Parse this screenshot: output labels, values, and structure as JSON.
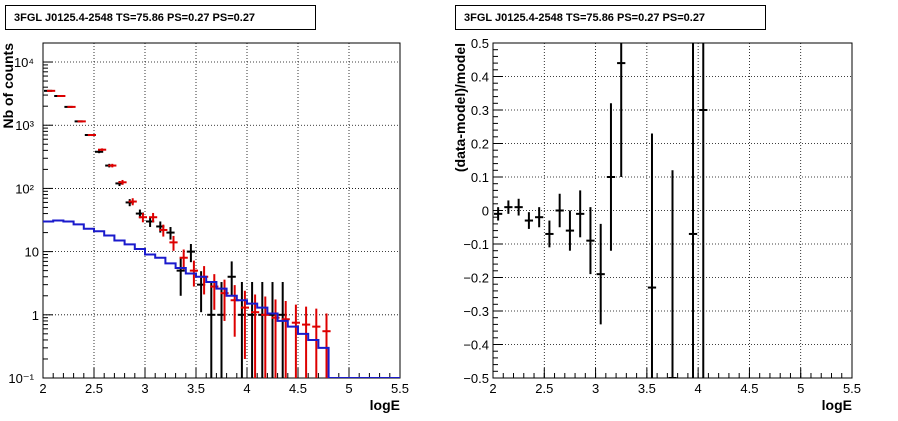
{
  "colors": {
    "data": "#000000",
    "model": "#dd0000",
    "background": "#1a1acc",
    "frame": "#000000"
  },
  "chart_data": [
    {
      "type": "scatter",
      "title": "3FGL J0125.4-2548 TS=75.86 PS=0.27 PS=0.27",
      "xlabel": "logE",
      "ylabel": "Nb of counts",
      "xlim": [
        2,
        5.5
      ],
      "ylim": [
        0.1,
        20000
      ],
      "yscale": "log",
      "grid": true,
      "xticks": [
        "2",
        "2.5",
        "3",
        "3.5",
        "4",
        "4.5",
        "5",
        "5.5"
      ],
      "yticks": [
        "10⁻¹",
        "1",
        "10",
        "10²",
        "10³",
        "10⁴"
      ],
      "series": [
        {
          "role": "data",
          "x": [
            2.05,
            2.15,
            2.25,
            2.35,
            2.45,
            2.55,
            2.65,
            2.75,
            2.85,
            2.95,
            3.05,
            3.15,
            3.25,
            3.35,
            3.45,
            3.55,
            3.65,
            3.75,
            3.85,
            3.95,
            4.05,
            4.15,
            4.25,
            4.35
          ],
          "y": [
            3500,
            2900,
            1950,
            1150,
            700,
            380,
            230,
            120,
            60,
            40,
            30,
            25,
            20,
            5,
            10,
            3,
            1,
            1,
            4,
            1,
            1,
            1,
            1,
            1
          ],
          "yerr_low": [
            60,
            54,
            44,
            34,
            26,
            19,
            15,
            11,
            7.7,
            6.3,
            5.5,
            5,
            4.5,
            3,
            3.2,
            1.9,
            0.9,
            0.9,
            2,
            0.9,
            0.9,
            0.9,
            0.9,
            0.9
          ],
          "yerr_high": [
            60,
            54,
            44,
            34,
            26,
            19,
            15,
            11,
            7.7,
            6.3,
            5.5,
            5,
            4.5,
            3,
            3.2,
            1.9,
            2.3,
            2.3,
            3,
            2.3,
            2.3,
            2.3,
            2.3,
            2.3
          ]
        },
        {
          "role": "model",
          "x": [
            2.05,
            2.15,
            2.25,
            2.35,
            2.45,
            2.55,
            2.65,
            2.75,
            2.85,
            2.95,
            3.05,
            3.15,
            3.25,
            3.35,
            3.45,
            3.55,
            3.65,
            3.75,
            3.85,
            3.95,
            4.05,
            4.15,
            4.25,
            4.35,
            4.45,
            4.55,
            4.65,
            4.75
          ],
          "y": [
            3500,
            2900,
            1950,
            1150,
            700,
            410,
            230,
            125,
            62,
            35,
            35,
            22,
            14,
            8,
            5,
            4,
            2.8,
            2.2,
            1.7,
            1.3,
            1.1,
            1.0,
            0.9,
            0.85,
            0.75,
            0.7,
            0.65,
            0.55
          ],
          "yerr_low": [
            59,
            54,
            44,
            34,
            26,
            20,
            15,
            11,
            7.9,
            5.9,
            5.9,
            4.7,
            3.7,
            2.8,
            2.2,
            1.9,
            1.6,
            1.4,
            1.25,
            1.1,
            1.0,
            0.95,
            0.85,
            0.8,
            0.7,
            0.65,
            0.6,
            0.5
          ],
          "yerr_high": [
            59,
            54,
            44,
            34,
            26,
            20,
            15,
            11,
            7.9,
            5.9,
            5.9,
            4.7,
            3.7,
            2.8,
            2.2,
            1.9,
            1.6,
            1.4,
            1.25,
            1.1,
            1.0,
            0.95,
            0.85,
            0.8,
            0.7,
            0.65,
            0.6,
            0.5
          ]
        },
        {
          "role": "background",
          "step_x": [
            2.0,
            2.1,
            2.2,
            2.3,
            2.4,
            2.5,
            2.6,
            2.7,
            2.8,
            2.9,
            3.0,
            3.1,
            3.2,
            3.3,
            3.4,
            3.5,
            3.6,
            3.7,
            3.8,
            3.9,
            4.0,
            4.1,
            4.2,
            4.3,
            4.4,
            4.5,
            4.6,
            4.7,
            4.8
          ],
          "step_y": [
            30,
            31,
            30,
            27,
            23,
            21,
            18,
            15,
            13,
            11,
            9,
            8,
            6.5,
            5.5,
            4.5,
            4,
            3.3,
            2.6,
            2.0,
            1.7,
            1.5,
            1.3,
            1.05,
            0.8,
            0.65,
            0.5,
            0.4,
            0.3,
            0.1
          ],
          "step_end": 5.5
        }
      ]
    },
    {
      "type": "scatter",
      "title": "3FGL J0125.4-2548 TS=75.86 PS=0.27 PS=0.27",
      "xlabel": "logE",
      "ylabel": "(data-model)/model",
      "xlim": [
        2,
        5.5
      ],
      "ylim": [
        -0.5,
        0.5
      ],
      "grid": true,
      "xticks": [
        "2",
        "2.5",
        "3",
        "3.5",
        "4",
        "4.5",
        "5",
        "5.5"
      ],
      "yticks": [
        "−0.5",
        "−0.4",
        "−0.3",
        "−0.2",
        "−0.1",
        "0",
        "0.1",
        "0.2",
        "0.3",
        "0.4",
        "0.5"
      ],
      "series": [
        {
          "role": "data",
          "x": [
            2.05,
            2.15,
            2.25,
            2.35,
            2.45,
            2.55,
            2.65,
            2.75,
            2.85,
            2.95,
            3.05,
            3.15,
            3.25,
            3.55,
            3.75,
            3.95,
            4.05
          ],
          "y": [
            -0.01,
            0.01,
            0.01,
            -0.03,
            -0.02,
            -0.07,
            0.0,
            -0.06,
            -0.01,
            -0.09,
            -0.19,
            0.1,
            0.44,
            -0.23,
            -0.5,
            -0.07,
            0.3
          ],
          "yerr_low": [
            0.02,
            0.02,
            0.025,
            0.025,
            0.03,
            0.04,
            0.05,
            0.06,
            0.07,
            0.1,
            0.15,
            0.22,
            0.34,
            0.5,
            0.6,
            0.8,
            0.9
          ],
          "yerr_high": [
            0.02,
            0.02,
            0.025,
            0.025,
            0.03,
            0.04,
            0.05,
            0.06,
            0.07,
            0.1,
            0.15,
            0.22,
            0.34,
            0.46,
            0.62,
            0.9,
            0.9
          ]
        }
      ]
    }
  ]
}
